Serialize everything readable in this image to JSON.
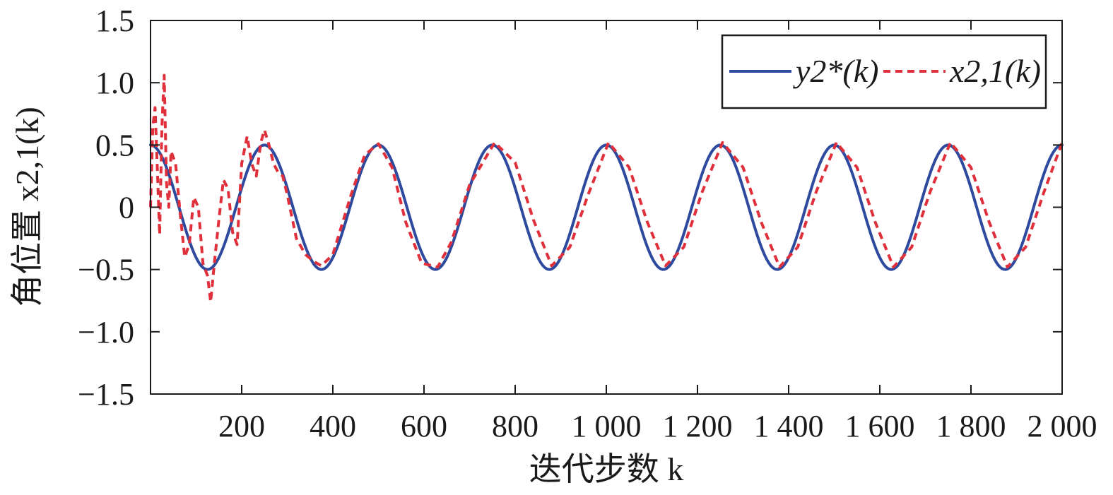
{
  "chart_data": {
    "type": "line",
    "xlabel": "迭代步数 k",
    "ylabel": "角位置 x2,1(k)",
    "xlim": [
      0,
      2000
    ],
    "ylim": [
      -1.5,
      1.5
    ],
    "xticks": [
      200,
      400,
      600,
      800,
      1000,
      1200,
      1400,
      1600,
      1800,
      2000
    ],
    "xtick_labels": [
      "200",
      "400",
      "600",
      "800",
      "1 000",
      "1 200",
      "1 400",
      "1 600",
      "1 800",
      "2 000"
    ],
    "yticks": [
      1.5,
      1.0,
      0.5,
      0,
      -0.5,
      -1.0,
      -1.5
    ],
    "ytick_labels": [
      "1.5",
      "1.0",
      "0.5",
      "0",
      "−0.5",
      "−1.0",
      "−1.5"
    ],
    "grid": false,
    "legend_position": "top-right",
    "series": [
      {
        "name": "y2*(k)",
        "color": "#2e4a9e",
        "style": "solid",
        "formula": "0.5*cos(2*pi*k/250)",
        "x": [
          0,
          62.5,
          125,
          187.5,
          250,
          312.5,
          375,
          437.5,
          500,
          562.5,
          625,
          687.5,
          750,
          812.5,
          875,
          937.5,
          1000,
          1062.5,
          1125,
          1187.5,
          1250,
          1312.5,
          1375,
          1437.5,
          1500,
          1562.5,
          1625,
          1687.5,
          1750,
          1812.5,
          1875,
          1937.5,
          2000
        ],
        "y": [
          0.5,
          0,
          -0.5,
          0,
          0.5,
          0,
          -0.5,
          0,
          0.5,
          0,
          -0.5,
          0,
          0.5,
          0,
          -0.5,
          0,
          0.5,
          0,
          -0.5,
          0,
          0.5,
          0,
          -0.5,
          0,
          0.5,
          0,
          -0.5,
          0,
          0.5,
          0,
          -0.5,
          0,
          0.5
        ]
      },
      {
        "name": "x2,1(k)",
        "color": "#e0303b",
        "style": "dashed",
        "x": [
          0,
          5,
          10,
          15,
          20,
          25,
          30,
          35,
          40,
          45,
          55,
          65,
          75,
          85,
          95,
          105,
          115,
          125,
          132,
          140,
          150,
          160,
          170,
          180,
          190,
          200,
          212,
          222,
          232,
          242,
          250,
          260,
          270,
          280,
          290,
          300,
          320,
          340,
          360,
          375,
          400,
          440,
          470,
          500,
          530,
          560,
          595,
          630,
          660,
          700,
          755,
          800,
          840,
          880,
          920,
          960,
          1005,
          1050,
          1090,
          1130,
          1170,
          1210,
          1255,
          1300,
          1340,
          1380,
          1420,
          1460,
          1505,
          1550,
          1590,
          1630,
          1670,
          1710,
          1755,
          1800,
          1840,
          1880,
          1920,
          1960,
          2000
        ],
        "y": [
          0.0,
          0.65,
          0.8,
          0.3,
          -0.22,
          0.65,
          1.06,
          0.2,
          0.0,
          0.45,
          0.35,
          -0.05,
          -0.4,
          -0.3,
          0.08,
          0.0,
          -0.45,
          -0.55,
          -0.76,
          -0.45,
          -0.1,
          0.22,
          0.15,
          -0.2,
          -0.3,
          0.35,
          0.57,
          0.35,
          0.25,
          0.52,
          0.62,
          0.5,
          0.35,
          0.28,
          0.25,
          0.1,
          -0.25,
          -0.38,
          -0.44,
          -0.47,
          -0.38,
          0.1,
          0.42,
          0.51,
          0.32,
          -0.12,
          -0.45,
          -0.48,
          -0.28,
          0.18,
          0.52,
          0.36,
          -0.1,
          -0.47,
          -0.32,
          0.1,
          0.52,
          0.32,
          -0.12,
          -0.47,
          -0.32,
          0.12,
          0.52,
          0.32,
          -0.12,
          -0.48,
          -0.32,
          0.12,
          0.52,
          0.32,
          -0.12,
          -0.48,
          -0.32,
          0.12,
          0.52,
          0.32,
          -0.12,
          -0.48,
          -0.32,
          0.12,
          0.52
        ]
      }
    ]
  }
}
